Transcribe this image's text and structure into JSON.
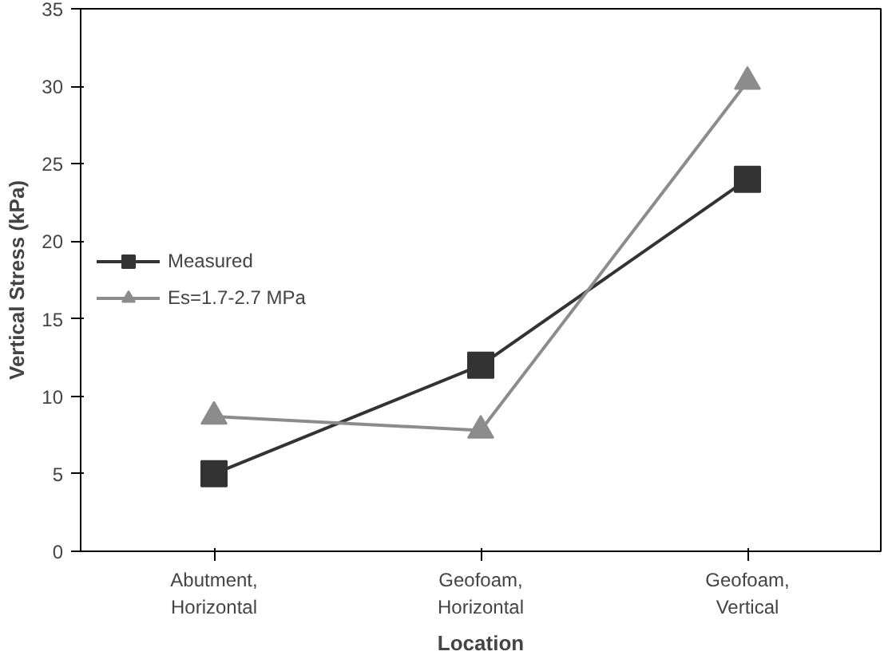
{
  "chart_data": {
    "type": "line",
    "xlabel": "Location",
    "ylabel": "Vertical Stress (kPa)",
    "categories": [
      "Abutment, Horizontal",
      "Geofoam, Horizontal",
      "Geofoam, Vertical"
    ],
    "series": [
      {
        "name": "Measured",
        "color": "#333333",
        "marker": "square",
        "values": [
          5,
          12,
          24
        ]
      },
      {
        "name": "Es=1.7-2.7 MPa",
        "color": "#8c8c8c",
        "marker": "triangle",
        "values": [
          8.7,
          7.8,
          30.3
        ]
      }
    ],
    "ylim": [
      0,
      35
    ],
    "yticks": [
      0,
      5,
      10,
      15,
      20,
      25,
      30,
      35
    ],
    "grid": false,
    "legend": "left"
  }
}
